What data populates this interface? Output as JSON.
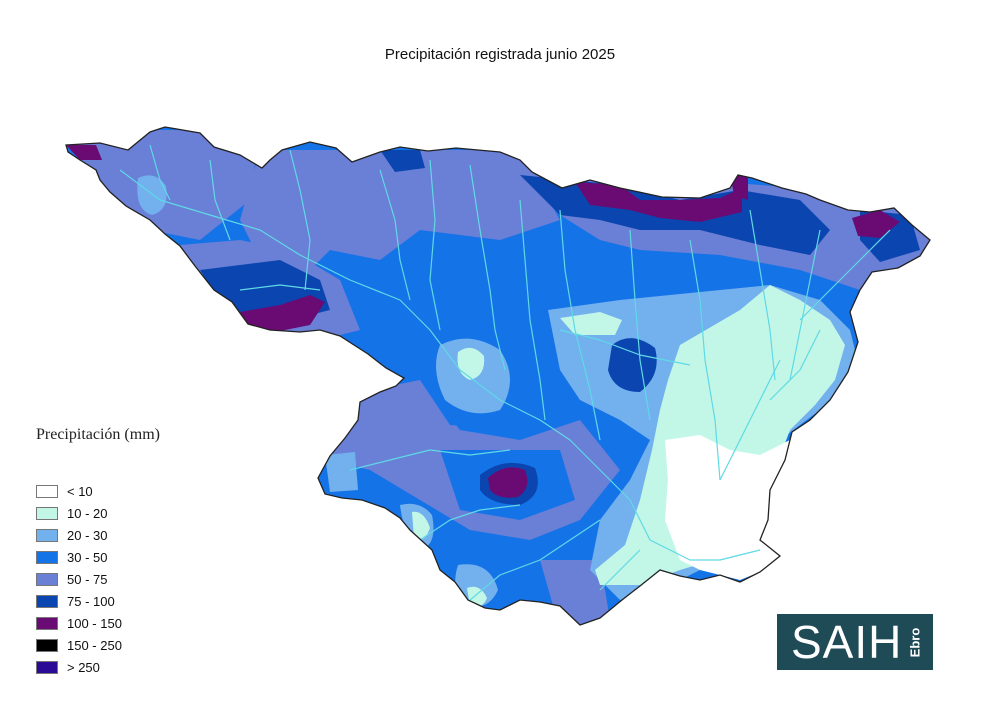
{
  "title": "Precipitación registrada junio 2025",
  "legend": {
    "title": "Precipitación (mm)",
    "items": [
      {
        "label": "< 10",
        "color": "#ffffff"
      },
      {
        "label": "10 - 20",
        "color": "#c2f7e8"
      },
      {
        "label": "20 - 30",
        "color": "#72b0ee"
      },
      {
        "label": "30 - 50",
        "color": "#1573e8"
      },
      {
        "label": "50 - 75",
        "color": "#6a7fd6"
      },
      {
        "label": "75 - 100",
        "color": "#0b45b0"
      },
      {
        "label": "100 - 150",
        "color": "#6a0b74"
      },
      {
        "label": "150 - 250",
        "color": "#000000"
      },
      {
        "label": "> 250",
        "color": "#2b0a95"
      }
    ]
  },
  "logo": {
    "main": "SAIH",
    "sub": "Ebro"
  },
  "map": {
    "river_color": "#5fd9e6",
    "outline_color": "#222222"
  }
}
